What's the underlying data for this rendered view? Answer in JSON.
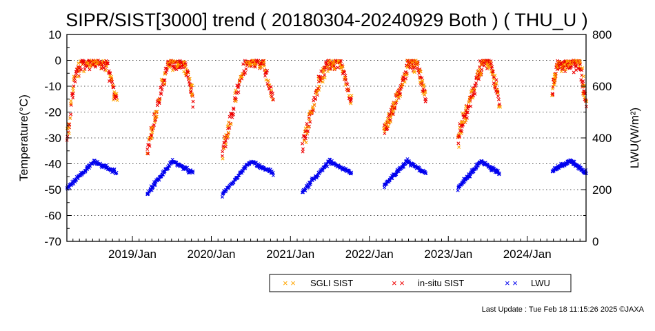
{
  "chart_data": {
    "type": "scatter",
    "title": "SIPR/SIST[3000] trend ( 20180304-20240929 Both ) ( THU_U )",
    "ylabel": "Temperature(°C)",
    "y2label": "LWU(W/m²)",
    "ylim": [
      -70,
      10
    ],
    "y2lim": [
      0,
      800
    ],
    "xlim": [
      "2018-03-04",
      "2024-09-29"
    ],
    "yticks": [
      "10",
      "0",
      "-10",
      "-20",
      "-30",
      "-40",
      "-50",
      "-60",
      "-70"
    ],
    "y2ticks": [
      "800",
      "600",
      "400",
      "200",
      "0"
    ],
    "xticks": [
      "2019/Jan",
      "2020/Jan",
      "2021/Jan",
      "2022/Jan",
      "2023/Jan",
      "2024/Jan"
    ],
    "grid": true,
    "legend_position": "bottom",
    "seasons": [
      {
        "start": "2018-03-04",
        "end": "2018-10-20",
        "min": -32,
        "lwu_min": 205,
        "shift": 0.15
      },
      {
        "start": "2019-03-10",
        "end": "2019-10-10",
        "min": -36,
        "lwu_min": 185,
        "shift": 0.35
      },
      {
        "start": "2020-02-20",
        "end": "2020-10-15",
        "min": -36,
        "lwu_min": 180,
        "shift": 0.35
      },
      {
        "start": "2021-02-25",
        "end": "2021-10-10",
        "min": -34,
        "lwu_min": 190,
        "shift": 0.35
      },
      {
        "start": "2022-03-10",
        "end": "2022-09-20",
        "min": -28,
        "lwu_min": 215,
        "shift": 0.45
      },
      {
        "start": "2023-02-15",
        "end": "2023-08-25",
        "min": -30,
        "lwu_min": 205,
        "shift": 0.45
      },
      {
        "start": "2024-04-25",
        "end": "2024-09-29",
        "min": -14,
        "lwu_min": 275,
        "shift": 0.05
      }
    ],
    "series": [
      {
        "name": "SGLI SIST",
        "color": "#ffa500"
      },
      {
        "name": "in-situ SIST",
        "color": "#ee0000"
      },
      {
        "name": "LWU",
        "color": "#0000ee"
      }
    ]
  },
  "legend_marker": "× ×",
  "footer": "Last Update : Tue Feb 18 11:15:26 2025  ©JAXA"
}
